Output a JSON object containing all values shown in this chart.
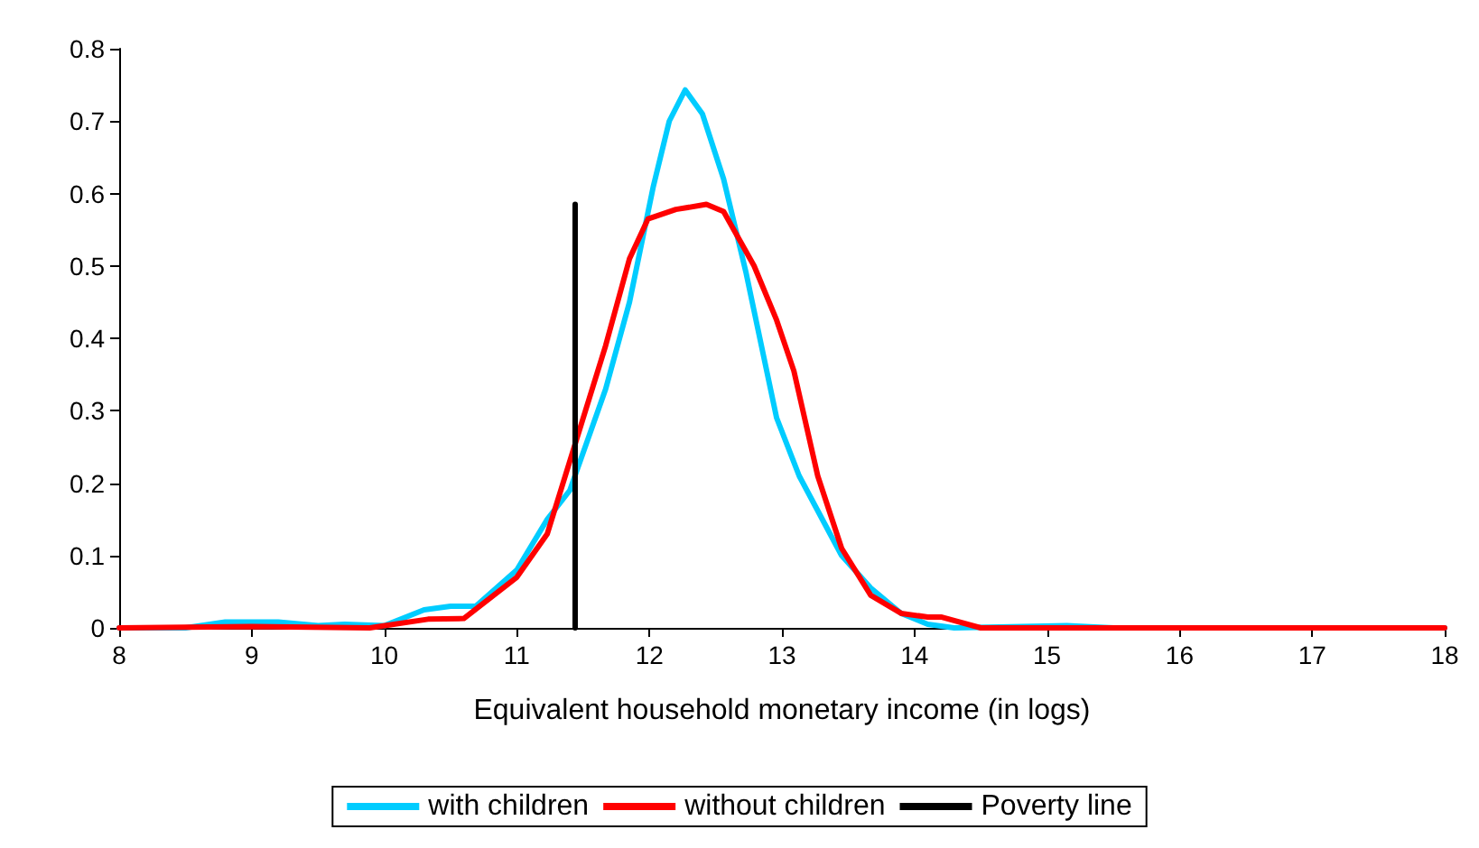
{
  "chart_data": {
    "type": "line",
    "xlabel": "Equivalent household monetary income (in logs)",
    "xlim": [
      8,
      18
    ],
    "xticks": [
      8,
      9,
      10,
      11,
      12,
      13,
      14,
      15,
      16,
      17,
      18
    ],
    "ylim": [
      0,
      0.8
    ],
    "yticks": [
      0,
      0.1,
      0.2,
      0.3,
      0.4,
      0.5,
      0.6,
      0.7,
      0.8
    ],
    "grid": false,
    "legend": "bottom",
    "marker": "none",
    "line_style": "solid",
    "series": [
      {
        "name": "with children",
        "color": "#00ccff",
        "x": [
          8,
          8.5,
          8.8,
          9.2,
          9.5,
          9.7,
          10,
          10.3,
          10.5,
          10.69,
          11,
          11.23,
          11.4,
          11.67,
          11.85,
          12.03,
          12.15,
          12.27,
          12.4,
          12.56,
          12.73,
          12.96,
          13.13,
          13.45,
          13.67,
          13.9,
          14.1,
          14.3,
          15.15,
          15.5,
          18
        ],
        "values": [
          0,
          0,
          0.008,
          0.008,
          0.003,
          0.005,
          0.003,
          0.025,
          0.03,
          0.03,
          0.08,
          0.15,
          0.19,
          0.33,
          0.45,
          0.61,
          0.7,
          0.743,
          0.71,
          0.62,
          0.49,
          0.29,
          0.21,
          0.1,
          0.055,
          0.02,
          0.005,
          0,
          0.003,
          0,
          0
        ]
      },
      {
        "name": "without children",
        "color": "#ff0000",
        "x": [
          8,
          9,
          9.89,
          10.33,
          10.6,
          11,
          11.23,
          11.45,
          11.67,
          11.85,
          11.99,
          12.2,
          12.43,
          12.56,
          12.79,
          12.96,
          13.09,
          13.27,
          13.45,
          13.67,
          13.9,
          14.1,
          14.2,
          14.5,
          18
        ],
        "values": [
          0,
          0.002,
          0,
          0.012,
          0.013,
          0.07,
          0.13,
          0.26,
          0.39,
          0.51,
          0.565,
          0.578,
          0.585,
          0.575,
          0.5,
          0.425,
          0.355,
          0.21,
          0.11,
          0.045,
          0.02,
          0.015,
          0.015,
          0,
          0
        ]
      },
      {
        "name": "Poverty line",
        "color": "#000000",
        "x": [
          11.44,
          11.44
        ],
        "values": [
          0,
          0.585
        ]
      }
    ]
  }
}
